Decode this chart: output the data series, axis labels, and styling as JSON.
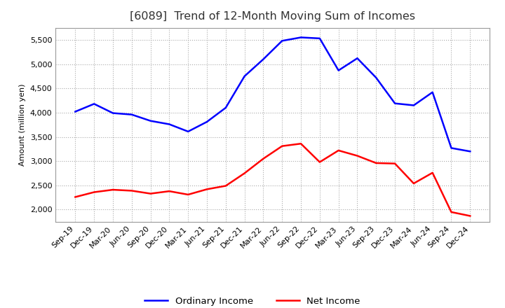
{
  "title": "[6089]  Trend of 12-Month Moving Sum of Incomes",
  "ylabel": "Amount (million yen)",
  "x_labels": [
    "Sep-19",
    "Dec-19",
    "Mar-20",
    "Jun-20",
    "Sep-20",
    "Dec-20",
    "Mar-21",
    "Jun-21",
    "Sep-21",
    "Dec-21",
    "Mar-22",
    "Jun-22",
    "Sep-22",
    "Dec-22",
    "Mar-23",
    "Jun-23",
    "Sep-23",
    "Dec-23",
    "Mar-24",
    "Jun-24",
    "Sep-24",
    "Dec-24"
  ],
  "ordinary_income": [
    4020,
    4180,
    3990,
    3960,
    3830,
    3760,
    3610,
    3810,
    4100,
    4750,
    5100,
    5480,
    5550,
    5530,
    4870,
    5120,
    4720,
    4190,
    4150,
    4420,
    3270,
    3200
  ],
  "net_income": [
    2260,
    2360,
    2410,
    2390,
    2330,
    2380,
    2310,
    2420,
    2490,
    2750,
    3050,
    3310,
    3360,
    2980,
    3220,
    3110,
    2960,
    2950,
    2540,
    2760,
    1950,
    1870
  ],
  "ordinary_color": "#0000ff",
  "net_color": "#ff0000",
  "ylim": [
    1750,
    5750
  ],
  "yticks": [
    2000,
    2500,
    3000,
    3500,
    4000,
    4500,
    5000,
    5500
  ],
  "grid_color": "#aaaaaa",
  "background_color": "#ffffff",
  "title_fontsize": 11.5,
  "legend_fontsize": 9.5,
  "tick_fontsize": 8,
  "line_width": 1.8
}
